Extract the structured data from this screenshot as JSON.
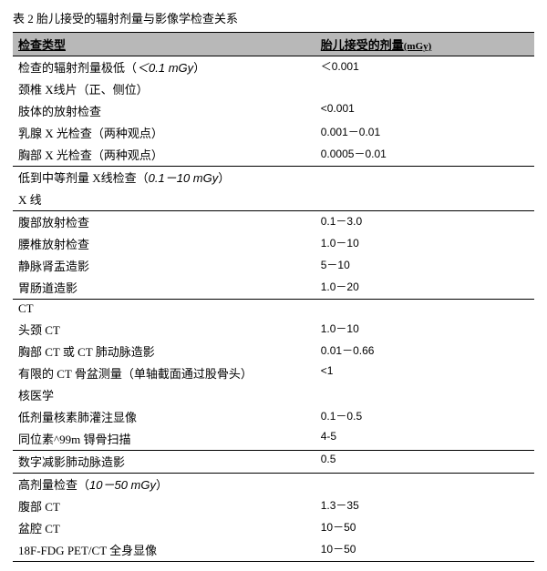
{
  "title": "表 2 胎儿接受的辐射剂量与影像学检查关系",
  "header": {
    "col1": "检查类型",
    "col2_main": "胎儿接受的剂量",
    "col2_unit": "(mGy)"
  },
  "rows": [
    {
      "label_html": "检查的辐射剂量极低（<span class='italic'>＜0.1 mGy</span>）",
      "value": "＜0.001",
      "section_top": false
    },
    {
      "label_html": "颈椎 X线片（正、侧位）",
      "value": ""
    },
    {
      "label_html": "肢体的放射检查",
      "value": "<0.001"
    },
    {
      "label_html": "乳腺 X 光检查（两种观点）",
      "value": "0.001－0.01"
    },
    {
      "label_html": "胸部 X 光检查（两种观点）",
      "value": "0.0005－0.01"
    },
    {
      "label_html": "低到中等剂量 X线检查（<span class='italic'>0.1－10 mGy</span>）",
      "value": "",
      "section_top": true
    },
    {
      "label_html": "X 线",
      "value": ""
    },
    {
      "label_html": "腹部放射检查",
      "value": "0.1－3.0",
      "section_top": true
    },
    {
      "label_html": "腰椎放射检查",
      "value": "1.0－10"
    },
    {
      "label_html": "静脉肾盂造影",
      "value": "5－10"
    },
    {
      "label_html": "胃肠道造影",
      "value": "1.0－20"
    },
    {
      "label_html": "CT",
      "value": "",
      "section_top": true
    },
    {
      "label_html": "头颈 CT",
      "value": "1.0－10"
    },
    {
      "label_html": "胸部 CT 或 CT 肺动脉造影",
      "value": "0.01－0.66"
    },
    {
      "label_html": "有限的 CT 骨盆测量（单轴截面通过股骨头）",
      "value": "<1"
    },
    {
      "label_html": "核医学",
      "value": ""
    },
    {
      "label_html": "低剂量核素肺灌注显像",
      "value": "0.1－0.5"
    },
    {
      "label_html": "同位素^99m 锝骨扫描",
      "value": "4-5"
    },
    {
      "label_html": "数字减影肺动脉造影",
      "value": "0.5",
      "section_top": true
    },
    {
      "label_html": "高剂量检查（<span class='italic'>10－50 mGy</span>）",
      "value": "",
      "section_top": true
    },
    {
      "label_html": "腹部 CT",
      "value": "1.3－35"
    },
    {
      "label_html": "盆腔 CT",
      "value": "10－50"
    },
    {
      "label_html": "18F-FDG PET/CT 全身显像",
      "value": "10－50",
      "last": true
    }
  ]
}
